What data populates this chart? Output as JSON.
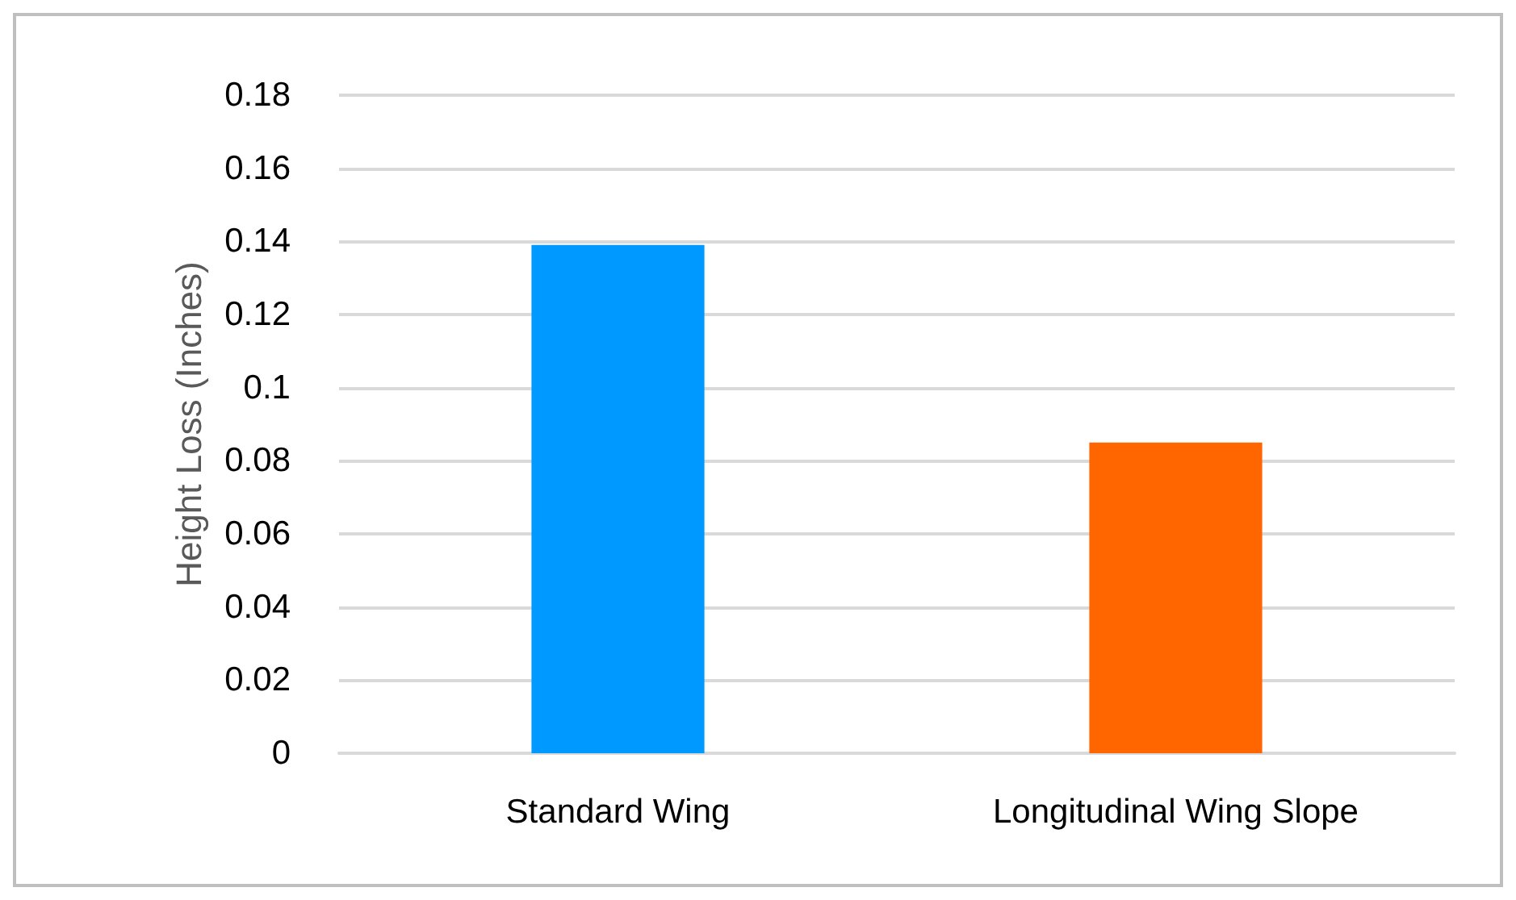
{
  "chart_data": {
    "type": "bar",
    "ylabel": "Height Loss (Inches)",
    "categories": [
      "Standard Wing",
      "Longitudinal Wing Slope"
    ],
    "values": [
      0.139,
      0.085
    ],
    "colors": [
      "#0099ff",
      "#ff6600"
    ],
    "ylim": [
      0,
      0.18
    ],
    "yticks": [
      0,
      0.02,
      0.04,
      0.06,
      0.08,
      0.1,
      0.12,
      0.14,
      0.16,
      0.18
    ],
    "grid": "y"
  }
}
